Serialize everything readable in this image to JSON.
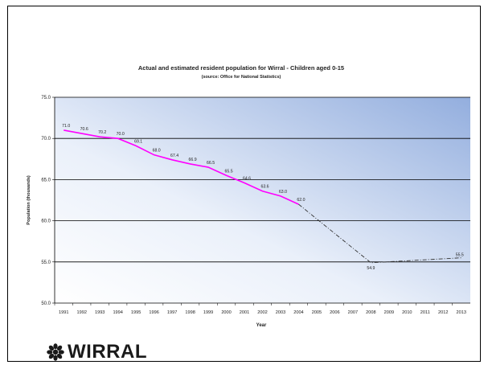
{
  "logo": {
    "text": "WIRRAL"
  },
  "chart_data": {
    "type": "line",
    "title": "Actual and estimated resident population for Wirral - Children aged 0-15",
    "subtitle": "(source: Office for National Statistics)",
    "xlabel": "Year",
    "ylabel": "Population (thousands)",
    "ylim": [
      50,
      75
    ],
    "yticks": [
      "50.0",
      "55.0",
      "60.0",
      "65.0",
      "70.0",
      "75.0"
    ],
    "categories": [
      "1991",
      "1992",
      "1993",
      "1994",
      "1995",
      "1996",
      "1997",
      "1998",
      "1999",
      "2000",
      "2001",
      "2002",
      "2003",
      "2004",
      "2005",
      "2006",
      "2007",
      "2008",
      "2009",
      "2010",
      "2011",
      "2012",
      "2013"
    ],
    "grid": true,
    "colors": {
      "actual": "#ff00ff",
      "estimate": "#333333"
    },
    "series": [
      {
        "style": "solid",
        "points": [
          {
            "x": "1991",
            "y": 71.0,
            "label": "71.0"
          },
          {
            "x": "1992",
            "y": 70.6,
            "label": "70.6"
          },
          {
            "x": "1993",
            "y": 70.2,
            "label": "70.2"
          },
          {
            "x": "1994",
            "y": 70.0,
            "label": "70.0"
          },
          {
            "x": "1995",
            "y": 69.1,
            "label": "69.1"
          },
          {
            "x": "1996",
            "y": 68.0,
            "label": "68.0"
          },
          {
            "x": "1997",
            "y": 67.4,
            "label": "67.4"
          },
          {
            "x": "1998",
            "y": 66.9,
            "label": "66.9"
          },
          {
            "x": "1999",
            "y": 66.5,
            "label": "66.5"
          },
          {
            "x": "2000",
            "y": 65.5,
            "label": "65.5"
          },
          {
            "x": "2001",
            "y": 64.6,
            "label": "64.6"
          },
          {
            "x": "2002",
            "y": 63.6,
            "label": "63.6"
          },
          {
            "x": "2003",
            "y": 63.0,
            "label": "63.0"
          },
          {
            "x": "2004",
            "y": 62.0,
            "label": "62.0"
          }
        ]
      },
      {
        "style": "dash-dot",
        "points": [
          {
            "x": "2004",
            "y": 62.0,
            "label": ""
          },
          {
            "x": "2008",
            "y": 54.9,
            "label": "54.9"
          },
          {
            "x": "2013",
            "y": 55.5,
            "label": "55.5"
          }
        ]
      }
    ]
  }
}
